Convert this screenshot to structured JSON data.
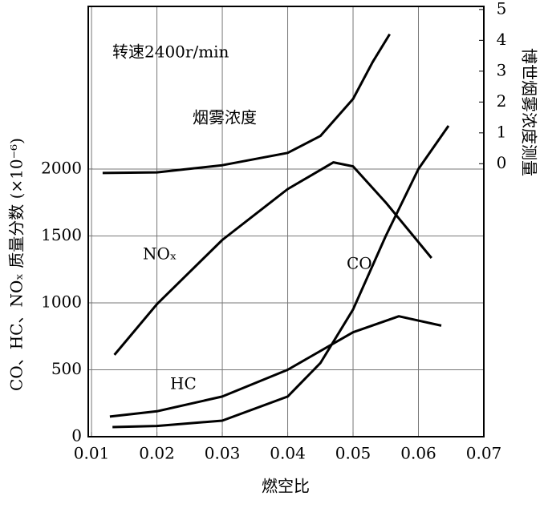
{
  "chart_data": {
    "type": "line",
    "x_label": "燃空比",
    "y_label": "CO、HC、NOₓ 质量分数 (×10⁻⁶)",
    "y2_label": "博世烟雾浓度测量",
    "annotations": [
      "转速2400r/min",
      "烟雾浓度",
      "NOₓ",
      "CO",
      "HC"
    ],
    "xlim": [
      0.0095,
      0.07
    ],
    "xticks": [
      0.01,
      0.02,
      0.03,
      0.04,
      0.05,
      0.06,
      0.07
    ],
    "ylim": [
      0,
      3215
    ],
    "yticks": [
      0,
      500,
      1000,
      1500,
      2000
    ],
    "y2lim": [
      -8.85,
      5.1
    ],
    "y2ticks": [
      0,
      1,
      2,
      3,
      4,
      5
    ],
    "grid": true,
    "series": [
      {
        "color": "#000000",
        "axis": "y2",
        "x": [
          0.0117,
          0.02,
          0.03,
          0.04,
          0.045,
          0.05,
          0.053,
          0.0556
        ],
        "values": [
          -0.3,
          -0.28,
          -0.05,
          0.35,
          0.9,
          2.1,
          3.3,
          4.2
        ]
      },
      {
        "color": "#000000",
        "x": [
          0.0135,
          0.02,
          0.03,
          0.04,
          0.047,
          0.05,
          0.055,
          0.062
        ],
        "values": [
          611,
          990,
          1470,
          1850,
          2050,
          2020,
          1750,
          1335
        ]
      },
      {
        "color": "#000000",
        "x": [
          0.0132,
          0.02,
          0.03,
          0.04,
          0.045,
          0.05,
          0.055,
          0.06,
          0.0646
        ],
        "values": [
          72,
          80,
          120,
          300,
          550,
          950,
          1500,
          2000,
          2323
        ]
      },
      {
        "color": "#000000",
        "x": [
          0.0128,
          0.02,
          0.03,
          0.04,
          0.05,
          0.057,
          0.0635
        ],
        "values": [
          150,
          190,
          300,
          500,
          780,
          900,
          830
        ]
      }
    ]
  }
}
